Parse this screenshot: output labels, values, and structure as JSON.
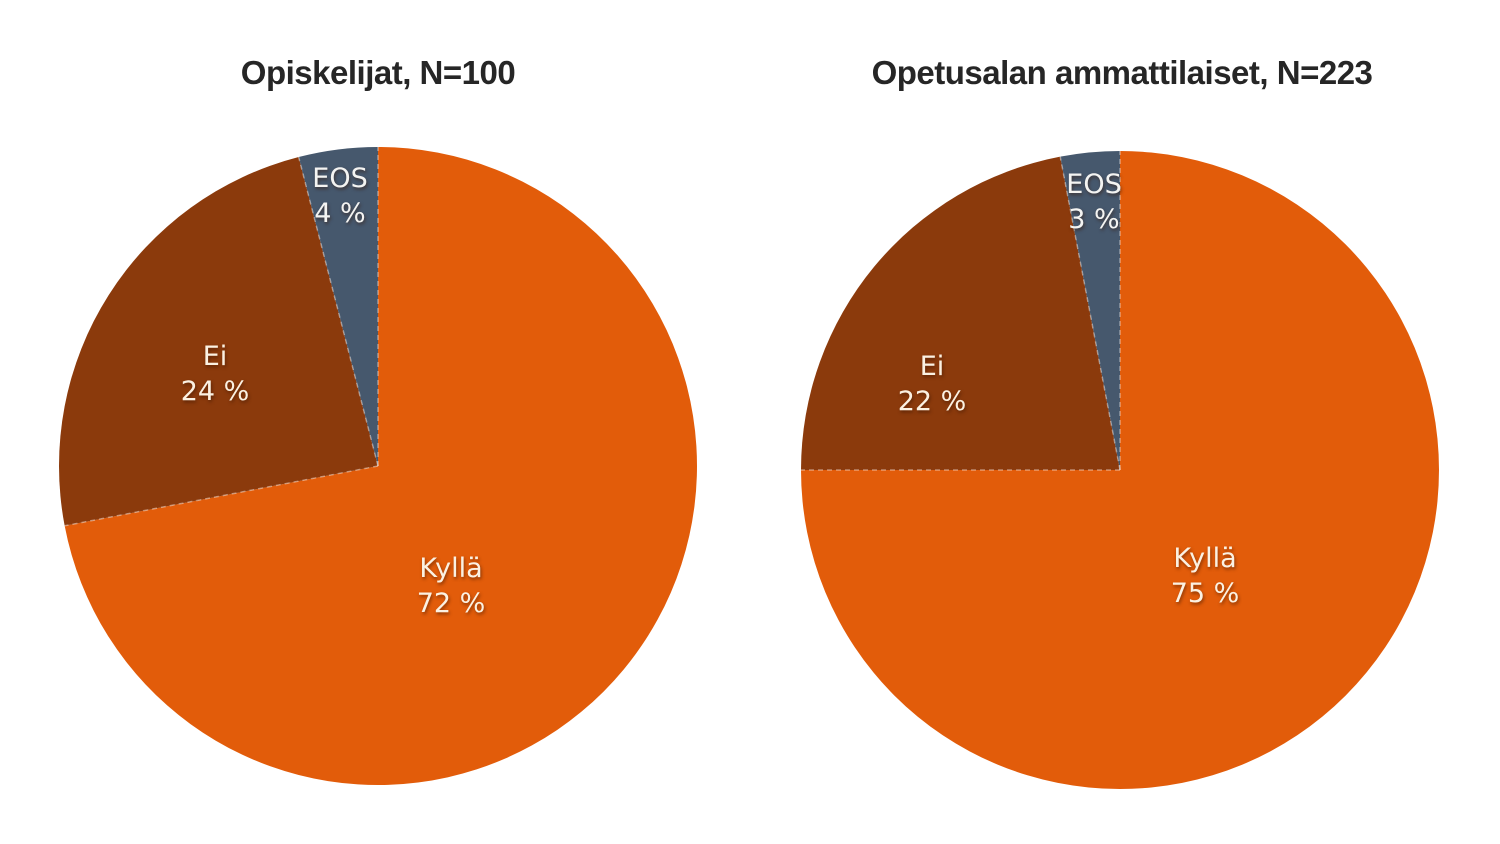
{
  "figure": {
    "background_color": "#ffffff",
    "title_color": "#262626",
    "label_text_color": "#fbf1e2"
  },
  "chart_data": [
    {
      "type": "pie",
      "title": "Opiskelijat, N=100",
      "n": 100,
      "start_angle_deg": 0,
      "direction": "clockwise",
      "legend": "none",
      "labels_inside": true,
      "slices": [
        {
          "id": "kylla",
          "label": "Kyllä",
          "value": 72,
          "pct_label": "72 %",
          "color": "#e25c0a"
        },
        {
          "id": "ei",
          "label": "Ei",
          "value": 24,
          "pct_label": "24 %",
          "color": "#8b3a0c"
        },
        {
          "id": "eos",
          "label": "EOS",
          "value": 4,
          "pct_label": "4 %",
          "color": "#46586d"
        }
      ]
    },
    {
      "type": "pie",
      "title": "Opetusalan ammattilaiset, N=223",
      "n": 223,
      "start_angle_deg": 0,
      "direction": "clockwise",
      "legend": "none",
      "labels_inside": true,
      "slices": [
        {
          "id": "kylla",
          "label": "Kyllä",
          "value": 75,
          "pct_label": "75 %",
          "color": "#e25c0a"
        },
        {
          "id": "ei",
          "label": "Ei",
          "value": 22,
          "pct_label": "22 %",
          "color": "#8b3a0c"
        },
        {
          "id": "eos",
          "label": "EOS",
          "value": 3,
          "pct_label": "3 %",
          "color": "#46586d"
        }
      ]
    }
  ]
}
